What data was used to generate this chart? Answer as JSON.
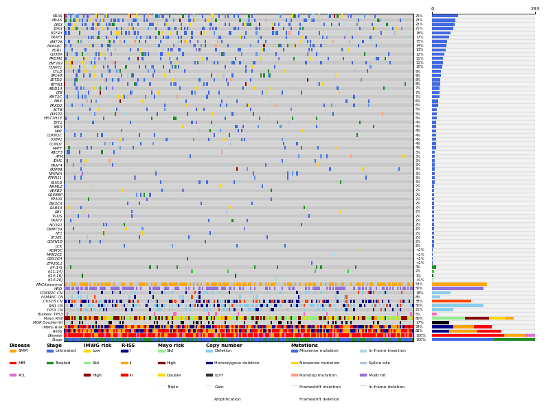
{
  "genes": [
    "KRAS",
    "NRAS",
    "DIS3",
    "TP53",
    "FGFR3",
    "TRAF3",
    "KMT2B",
    "FAM46C",
    "EGR1",
    "CD38A",
    "PRDM1",
    "ZNF292",
    "HUWE1",
    "CYLD",
    "SP140",
    "SETD2",
    "RFTN1",
    "ARID1A",
    "LTB",
    "KMT2C",
    "MAX",
    "PRKD2",
    "ACTB",
    "DUSP2",
    "HIST1H1E",
    "TET2",
    "XBP1",
    "MAF",
    "CDKN2C",
    "FUBP1",
    "CCND1",
    "MAFF",
    "ABCF3",
    "ATM",
    "IDH1",
    "TRAF4",
    "NUP98",
    "NFKNIA",
    "PTPN11",
    "KLHL6",
    "MAML2",
    "NFKB2",
    "CREBBP",
    "EP300",
    "PIK3CA",
    "RAB40",
    "RB1",
    "TGDS",
    "TRAF2",
    "NCOR1",
    "DNMT3A",
    "NF1",
    "SF3B1",
    "CDKN1B",
    "LCK",
    "KDM5C",
    "MAN2C1",
    "CBX3G4",
    "ZFP36L1"
  ],
  "gene_pcts": [
    "25%",
    "23%",
    "22%",
    "21%",
    "18%",
    "17%",
    "15%",
    "14%",
    "13%",
    "12%",
    "11%",
    "11%",
    "10%",
    "9%",
    "9%",
    "8%",
    "8%",
    "7%",
    "7%",
    "7%",
    "6%",
    "6%",
    "5%",
    "5%",
    "5%",
    "4%",
    "4%",
    "4%",
    "4%",
    "4%",
    "4%",
    "4%",
    "3%",
    "3%",
    "3%",
    "3%",
    "3%",
    "3%",
    "3%",
    "3%",
    "2%",
    "2%",
    "2%",
    "2%",
    "2%",
    "2%",
    "2%",
    "2%",
    "2%",
    "2%",
    "2%",
    "2%",
    "2%",
    "2%",
    "2%",
    "<1%",
    "<1%",
    "<1%",
    "<1%"
  ],
  "trans_rows": [
    "t(4;14)",
    "t(11;14)",
    "t(14;16)",
    "t(14;20)"
  ],
  "trans_pcts": [
    "4%",
    "2%",
    "1%",
    "<1%"
  ],
  "special_rows": [
    "MYCAbnormal",
    "HRD"
  ],
  "special_pcts": [
    "53%",
    "50%"
  ],
  "cn_rows": [
    "CDKN2C CN",
    "FAM46C CN",
    "CKS1B CN",
    "RB1 CN",
    "TP53 CN"
  ],
  "cn_pcts": [
    "18%",
    "8%",
    "38%",
    "50%",
    "21%"
  ],
  "clin_rows": [
    "Biallelic TP53",
    "Mayo Risk",
    "MGP Double-Hit",
    "IMWG Risk",
    "R-ISS",
    "Disease",
    "Stage"
  ],
  "clin_pcts": [
    "5%",
    "80%",
    "17%",
    "59%",
    "68%",
    "100%",
    "100%"
  ],
  "n_patients": 233,
  "COLORS": {
    "missense": "#4169E1",
    "nonsense": "#FFD700",
    "nonstop": "#FFA07A",
    "frameshift_ins": "#228B22",
    "frameshift_del": "#6495ED",
    "inframe_ins": "#ADD8E6",
    "splice": "#B0C4DE",
    "multihit": "#9370DB",
    "inframe_del": "#8B0000",
    "deletion": "#87CEEB",
    "homo_del": "#00008B",
    "loh": "#2F2F2F",
    "gain": "#FF4500",
    "amplification": "#8B0000",
    "smm": "#FFA500",
    "mm": "#FF0000",
    "pcl": "#DA70D6",
    "untreated": "#4169E1",
    "treated": "#228B22",
    "risk_low": "#FFD700",
    "risk_std": "#90EE90",
    "risk_high": "#8B0000",
    "hrd": "#9370DB",
    "myc": "#FFA500",
    "r_iss_1": "#00008B",
    "r_iss_2": "#FFA500",
    "r_iss_3": "#FF0000",
    "mayo_std": "#90EE90",
    "mayo_high": "#8B0000",
    "mayo_dbl": "#FFD700",
    "mayo_trp": "#FFA500",
    "black": "#000000",
    "biallelic": "#FF69B4",
    "trans_dark": "#228B22",
    "trans_med": "#32CD32",
    "trans_light1": "#006400",
    "trans_light2": "#90EE90",
    "bg_light": "#D3D3D3",
    "bg_dark": "#C8C8C8"
  }
}
